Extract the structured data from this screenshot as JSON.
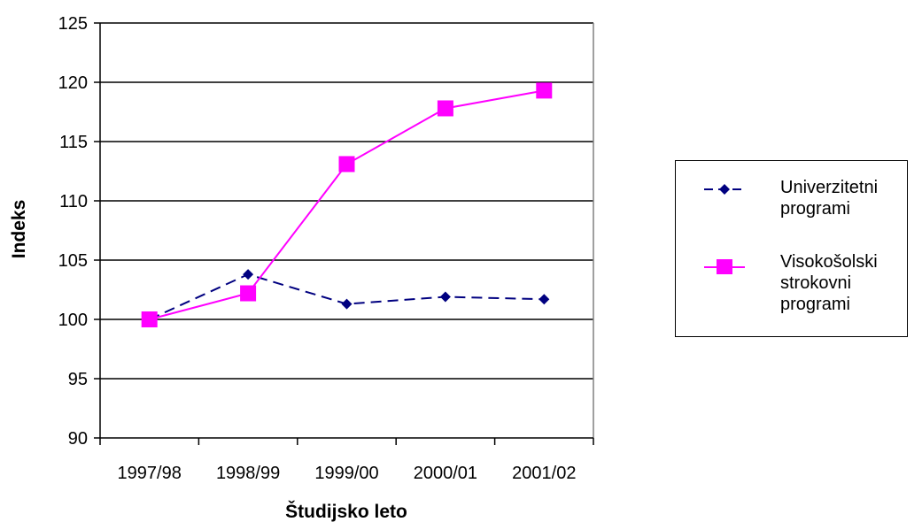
{
  "chart_data": {
    "type": "line",
    "title": "",
    "xlabel": "Študijsko leto",
    "ylabel": "Indeks",
    "categories": [
      "1997/98",
      "1998/99",
      "1999/00",
      "2000/01",
      "2001/02"
    ],
    "ylim": [
      90,
      125
    ],
    "yticks": [
      90,
      95,
      100,
      105,
      110,
      115,
      120,
      125
    ],
    "grid": "horizontal",
    "legend_position": "right",
    "series": [
      {
        "name": "Univerzitetni\nprogrami",
        "values": [
          100.0,
          103.8,
          101.3,
          101.9,
          101.7
        ],
        "color": "#000080",
        "line_style": "dashed",
        "marker": "diamond"
      },
      {
        "name": "Visokošolski\nstrokovni\nprogrami",
        "values": [
          100.0,
          102.2,
          113.1,
          117.8,
          119.3
        ],
        "color": "#ff00ff",
        "line_style": "solid",
        "marker": "square"
      }
    ]
  }
}
